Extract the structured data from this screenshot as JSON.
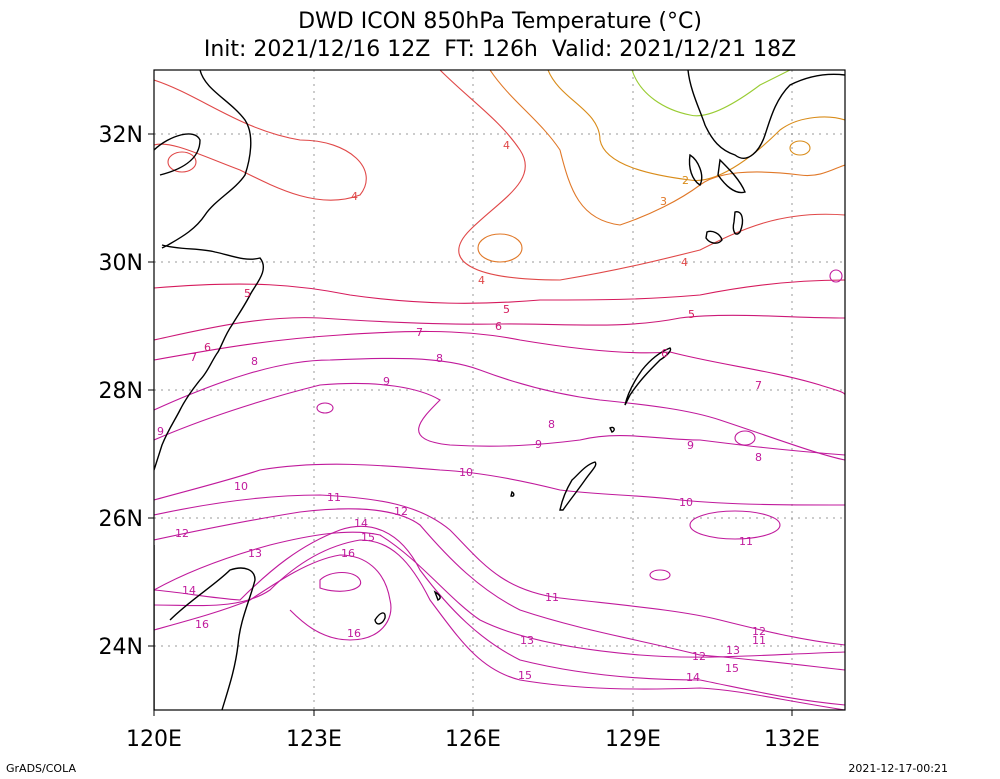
{
  "title": {
    "line1": "DWD ICON 850hPa Temperature (°C)",
    "line2": "Init: 2021/12/16 12Z  FT: 126h  Valid: 2021/12/21 18Z"
  },
  "footer": {
    "left": "GrADS/COLA",
    "right": "2021-12-17-00:21"
  },
  "map": {
    "lon_range": [
      120,
      133
    ],
    "lat_range": [
      23,
      33
    ],
    "x_ticks": [
      "120E",
      "123E",
      "126E",
      "129E",
      "132E"
    ],
    "y_ticks": [
      "24N",
      "26N",
      "28N",
      "30N",
      "32N"
    ],
    "grid": "dotted",
    "contour_labels": [
      "2",
      "3",
      "4",
      "5",
      "6",
      "7",
      "8",
      "9",
      "10",
      "11",
      "12",
      "13",
      "14",
      "15",
      "16"
    ],
    "colors": {
      "t2": "#d98c1a",
      "t3": "#e07828",
      "t4": "#e04848",
      "t5": "#d61b5c",
      "t6": "#cc1a78",
      "t7": "#c8148a",
      "t8": "#c01a9c",
      "t_green": "#99cc33",
      "coast": "#000000"
    }
  }
}
